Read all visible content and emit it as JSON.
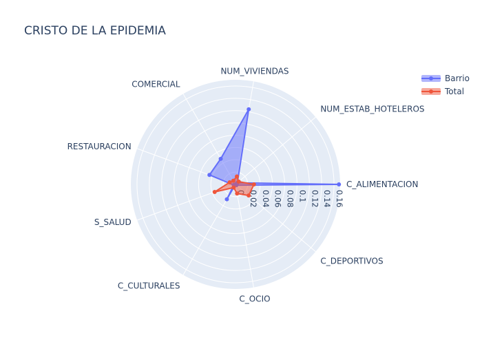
{
  "chart_data": {
    "type": "radar",
    "title": "CRISTO DE LA EPIDEMIA",
    "categories": [
      "C_ALIMENTACION",
      "C_DEPORTIVOS",
      "C_OCIO",
      "C_CULTURALES",
      "S_SALUD",
      "RESTAURACION",
      "COMERCIAL",
      "NUM_VIVIENDAS",
      "NUM_ESTAB_HOTELEROS"
    ],
    "radial_range": [
      0,
      0.17
    ],
    "radial_ticks": [
      "0",
      "0.02",
      "0.04",
      "0.06",
      "0.08",
      "0.1",
      "0.12",
      "0.14",
      "0.16"
    ],
    "radial_tick_values": [
      0,
      0.02,
      0.04,
      0.06,
      0.08,
      0.1,
      0.12,
      0.14,
      0.16
    ],
    "series": [
      {
        "name": "Barrio",
        "values": [
          0.168,
          0.002,
          0.0,
          0.028,
          0.003,
          0.045,
          0.048,
          0.124,
          0.004
        ],
        "color": "#636efa"
      },
      {
        "name": "Total",
        "values": [
          0.03,
          0.028,
          0.015,
          0.006,
          0.036,
          0.01,
          0.007,
          0.013,
          0.007
        ],
        "color": "#ef553b"
      }
    ],
    "legend_position": "top-right",
    "grid": true
  }
}
